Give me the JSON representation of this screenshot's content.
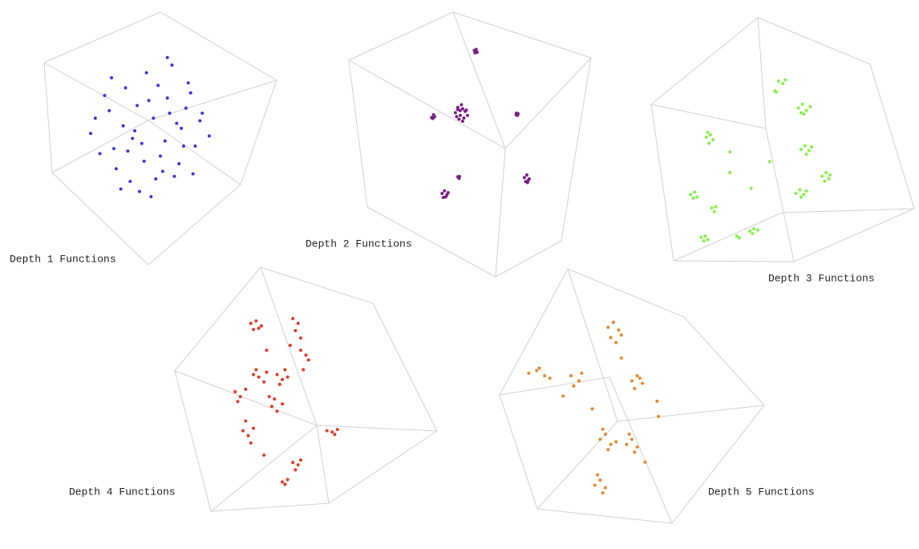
{
  "chart_data": [
    {
      "type": "scatter",
      "title": "Depth 1 Functions",
      "color": "#3a35e0",
      "x": [
        20,
        24,
        28,
        31,
        35,
        38,
        41,
        44,
        47,
        50,
        53,
        56,
        59,
        62,
        65,
        68,
        71,
        22,
        26,
        30,
        34,
        37,
        40,
        43,
        46,
        49,
        52,
        55,
        58,
        61,
        64,
        67,
        29,
        33,
        39,
        45,
        51,
        57,
        63,
        36,
        42,
        48,
        54,
        60,
        53
      ],
      "y": [
        52,
        44,
        61,
        38,
        70,
        50,
        29,
        76,
        58,
        43,
        66,
        35,
        54,
        72,
        47,
        60,
        51,
        58,
        67,
        46,
        55,
        33,
        63,
        41,
        27,
        71,
        49,
        79,
        40,
        62,
        36,
        57,
        74,
        30,
        53,
        65,
        37,
        56,
        68,
        45,
        48,
        34,
        60,
        47,
        82
      ]
    },
    {
      "type": "scatter",
      "title": "Depth 2 Functions",
      "color": "#7b1f86",
      "x": [
        51.8,
        52.6,
        53,
        52.1,
        44,
        45,
        46,
        47,
        48,
        49,
        45.5,
        46.5,
        47.5,
        44.5,
        48.5,
        46,
        47,
        45,
        34.2,
        35,
        35.4,
        34.6,
        69.2,
        69.9,
        69.6,
        69.1,
        45,
        45.7,
        45.5,
        38.5,
        39.5,
        40.5,
        39,
        40,
        41,
        72.5,
        73.5,
        74.5,
        73,
        74,
        73.8
      ],
      "y": [
        85.5,
        85.9,
        84.8,
        84.6,
        62,
        64,
        61,
        63.5,
        62.5,
        61,
        59.5,
        65,
        60,
        60.5,
        63,
        62.8,
        58.8,
        63.2,
        60.2,
        61.2,
        60.4,
        59.8,
        61.8,
        61.6,
        61,
        61.2,
        37.8,
        37.9,
        37.2,
        31.5,
        32.5,
        31,
        30,
        30.2,
        31.8,
        37.5,
        38.5,
        37,
        36,
        36.4,
        35.6
      ]
    },
    {
      "type": "scatter",
      "title": "Depth 3 Functions",
      "color": "#84f04a",
      "x": [
        48.5,
        50,
        51,
        47.5,
        47,
        56,
        57.5,
        59,
        60.5,
        58,
        57,
        21,
        22.5,
        23.5,
        22,
        21.5,
        57,
        58.5,
        60,
        59,
        61,
        65,
        66.5,
        67.5,
        66,
        68,
        55,
        56.5,
        58,
        57,
        59,
        15,
        16.5,
        17.5,
        16,
        23,
        24.5,
        24,
        37.5,
        39,
        40.5,
        38.5,
        32.5,
        33.5,
        19,
        20.5,
        21.5,
        20,
        29.9,
        45,
        30,
        38
      ],
      "y": [
        74,
        73,
        74.5,
        69.5,
        70,
        63,
        64.5,
        62,
        63.5,
        60.5,
        61,
        51,
        52,
        50,
        48.5,
        53,
        46,
        47.5,
        45.5,
        44,
        47,
        35,
        36.5,
        34,
        33,
        35.5,
        28,
        29.5,
        27.5,
        26.5,
        29,
        27.5,
        28.5,
        26.5,
        26,
        22,
        22.5,
        20.5,
        12.5,
        13.5,
        13,
        11.5,
        10.5,
        9.8,
        10,
        10.5,
        9,
        8.5,
        36.5,
        41,
        45,
        30
      ]
    },
    {
      "type": "scatter",
      "title": "Depth 4 Functions",
      "color": "#e03a24",
      "x": [
        29,
        31,
        33,
        30,
        32,
        45,
        47,
        46,
        48,
        48,
        50,
        51,
        49,
        30,
        32,
        34,
        31,
        35,
        23,
        25,
        27,
        24,
        39,
        41,
        43,
        40,
        42,
        37,
        39,
        41,
        38,
        26,
        28,
        30,
        27,
        29,
        58,
        60,
        62,
        61,
        45,
        47,
        48,
        46,
        41,
        43,
        42,
        35,
        36,
        34,
        44
      ],
      "y": [
        77,
        78,
        76,
        74.5,
        75,
        79,
        77,
        74,
        71,
        66,
        64,
        62,
        58,
        56,
        55,
        53,
        58,
        57,
        49,
        47,
        50,
        45,
        56,
        54,
        55,
        52,
        58,
        43,
        41,
        44,
        46,
        33,
        31,
        34,
        37,
        28,
        33,
        32.5,
        33.5,
        31.5,
        20,
        19,
        21,
        17,
        12,
        13,
        11,
        66,
        47,
        23,
        68
      ]
    },
    {
      "type": "scatter",
      "title": "Depth 5 Functions",
      "color": "#e8862a",
      "x": [
        41,
        43,
        45,
        42,
        44,
        46,
        50,
        52,
        54,
        51,
        53,
        11,
        14,
        17,
        19,
        15,
        27,
        30,
        28,
        31,
        38,
        40,
        42,
        44,
        41,
        39,
        48,
        50,
        52,
        51,
        49,
        36,
        38,
        40,
        39,
        37,
        59.5,
        60,
        46,
        24,
        55,
        35
      ],
      "y": [
        77,
        79,
        76,
        73,
        71,
        74,
        56,
        58,
        55,
        53,
        57,
        59,
        60,
        58,
        57,
        61,
        58,
        56,
        54,
        59,
        33,
        35,
        31,
        32,
        29,
        37,
        31,
        33,
        30,
        28,
        35,
        15,
        17,
        14,
        12,
        19,
        48,
        42,
        65,
        50,
        24,
        45
      ]
    }
  ]
}
